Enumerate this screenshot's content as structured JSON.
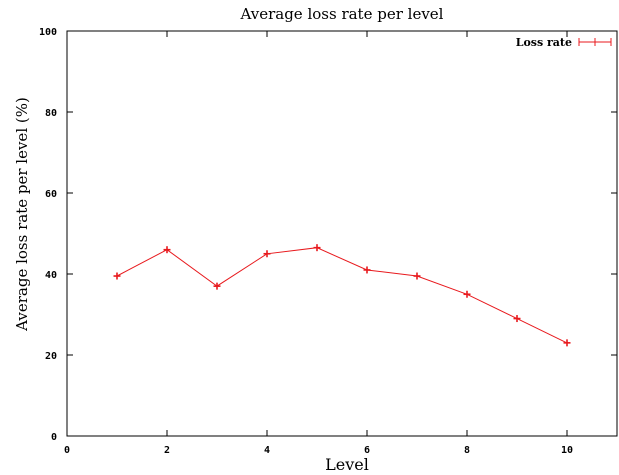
{
  "chart_data": {
    "type": "line",
    "title": "Average loss rate per level",
    "xlabel": "Level",
    "ylabel": "Average loss rate per level (%)",
    "xlim": [
      0,
      11
    ],
    "ylim": [
      0,
      100
    ],
    "xticks": [
      "0",
      "2",
      "4",
      "6",
      "8",
      "10"
    ],
    "yticks": [
      "0",
      "20",
      "40",
      "60",
      "80",
      "100"
    ],
    "grid": false,
    "legend_position": "top-right",
    "series": [
      {
        "name": "Loss rate",
        "color": "#e8191d",
        "marker": "plus",
        "x": [
          1,
          2,
          3,
          4,
          5,
          6,
          7,
          8,
          9,
          10
        ],
        "y": [
          39.5,
          46,
          37,
          45,
          46.5,
          41,
          39.5,
          35,
          29,
          23
        ]
      }
    ]
  }
}
